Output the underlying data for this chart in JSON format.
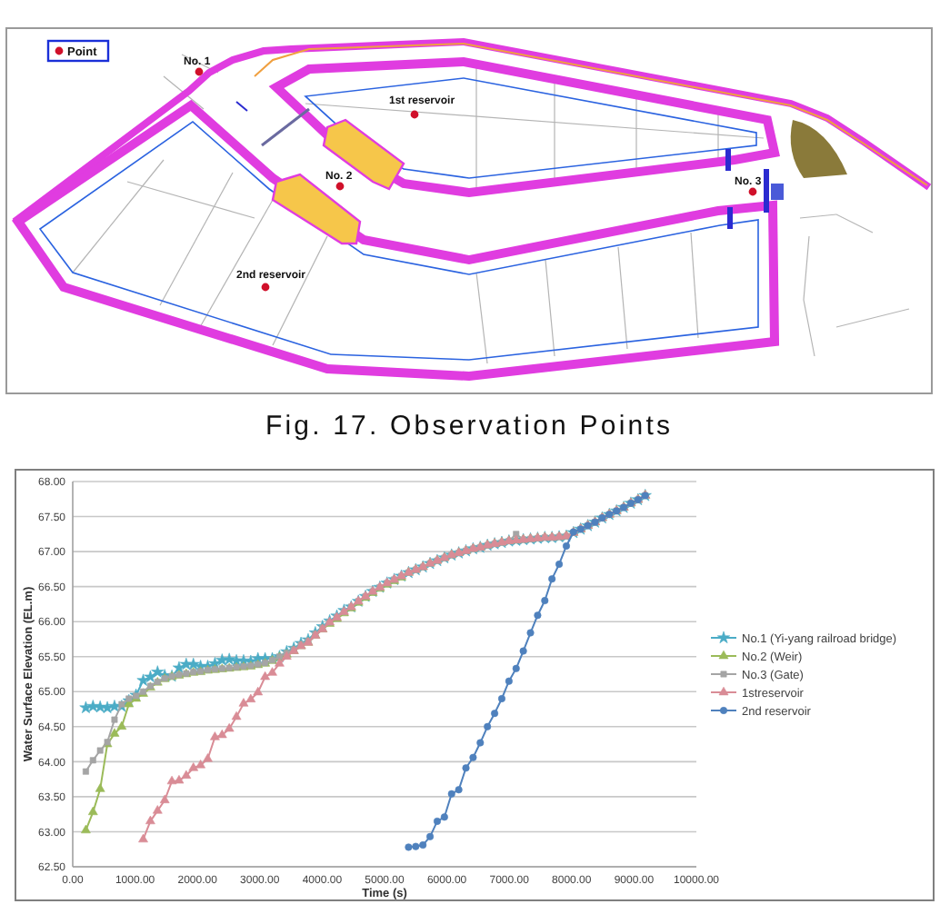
{
  "chart_data": [
    {
      "type": "other",
      "annotations": [
        "Point",
        "No. 1",
        "1st reservoir",
        "No. 2",
        "No. 3",
        "2nd reservoir",
        "Fig. 17. Observation Points"
      ]
    },
    {
      "type": "line",
      "xlabel": "Time (s)",
      "ylabel": "Water Surface Elevation (EL.m)",
      "xlim": [
        0,
        10000
      ],
      "xticks": [
        {
          "value": 0,
          "label": "0.00"
        },
        {
          "value": 1000,
          "label": "1000.00"
        },
        {
          "value": 2000,
          "label": "2000.00"
        },
        {
          "value": 3000,
          "label": "3000.00"
        },
        {
          "value": 4000,
          "label": "4000.00"
        },
        {
          "value": 5000,
          "label": "5000.00"
        },
        {
          "value": 6000,
          "label": "6000.00"
        },
        {
          "value": 7000,
          "label": "7000.00"
        },
        {
          "value": 8000,
          "label": "8000.00"
        },
        {
          "value": 9000,
          "label": "9000.00"
        },
        {
          "value": 10000,
          "label": "10000.00"
        }
      ],
      "ylim": [
        62.5,
        68
      ],
      "yticks": [
        {
          "value": 62.5,
          "label": "62.50"
        },
        {
          "value": 63,
          "label": "63.00"
        },
        {
          "value": 63.5,
          "label": "63.50"
        },
        {
          "value": 64,
          "label": "64.00"
        },
        {
          "value": 64.5,
          "label": "64.50"
        },
        {
          "value": 65,
          "label": "65.00"
        },
        {
          "value": 65.5,
          "label": "65.50"
        },
        {
          "value": 66,
          "label": "66.00"
        },
        {
          "value": 66.5,
          "label": "66.50"
        },
        {
          "value": 67,
          "label": "67.00"
        },
        {
          "value": 67.5,
          "label": "67.50"
        },
        {
          "value": 68,
          "label": "68.00"
        }
      ],
      "grid": "y",
      "legend": "right",
      "x": [
        210,
        325,
        440,
        555,
        670,
        785,
        900,
        1015,
        1130,
        1245,
        1360,
        1475,
        1590,
        1705,
        1820,
        1935,
        2050,
        2165,
        2280,
        2395,
        2510,
        2625,
        2740,
        2855,
        2970,
        3085,
        3200,
        3315,
        3430,
        3545,
        3660,
        3775,
        3890,
        4005,
        4120,
        4235,
        4350,
        4465,
        4580,
        4695,
        4810,
        4925,
        5040,
        5155,
        5270,
        5385,
        5500,
        5615,
        5730,
        5845,
        5960,
        6075,
        6190,
        6305,
        6420,
        6535,
        6650,
        6765,
        6880,
        6995,
        7110,
        7225,
        7340,
        7455,
        7570,
        7685,
        7800,
        7915,
        8030,
        8145,
        8260,
        8375,
        8490,
        8605,
        8720,
        8835,
        8950,
        9065,
        9180
      ],
      "series": [
        {
          "name": "No.1 (Yi-yang railroad bridge)",
          "color": "#4bacc6",
          "marker": "star",
          "values": [
            64.77,
            64.79,
            64.78,
            64.77,
            64.79,
            64.79,
            64.87,
            64.95,
            65.16,
            65.21,
            65.28,
            65.23,
            65.22,
            65.34,
            65.39,
            65.39,
            65.36,
            65.36,
            65.4,
            65.45,
            65.46,
            65.44,
            65.44,
            65.43,
            65.47,
            65.47,
            65.47,
            65.5,
            65.57,
            65.62,
            65.69,
            65.74,
            65.84,
            65.93,
            66.01,
            66.08,
            66.16,
            66.21,
            66.29,
            66.36,
            66.43,
            66.49,
            66.55,
            66.6,
            66.65,
            66.7,
            66.74,
            66.78,
            66.83,
            66.87,
            66.91,
            66.95,
            66.98,
            67.01,
            67.04,
            67.06,
            67.09,
            67.11,
            67.13,
            67.15,
            67.16,
            67.17,
            67.18,
            67.19,
            67.2,
            67.2,
            67.21,
            67.22,
            67.27,
            67.32,
            67.37,
            67.42,
            67.48,
            67.53,
            67.58,
            67.63,
            67.69,
            67.74,
            67.8
          ]
        },
        {
          "name": "No.2 (Weir)",
          "color": "#9bbb59",
          "marker": "triangle",
          "values": [
            63.02,
            63.28,
            63.61,
            64.25,
            64.4,
            64.5,
            64.82,
            64.9,
            64.97,
            65.06,
            65.13,
            65.18,
            65.21,
            65.23,
            65.25,
            65.27,
            65.28,
            65.3,
            65.31,
            65.32,
            65.33,
            65.34,
            65.35,
            65.36,
            65.38,
            65.4,
            65.44,
            65.49,
            65.53,
            65.58,
            65.65,
            65.7,
            65.8,
            65.89,
            65.97,
            66.04,
            66.12,
            66.19,
            66.27,
            66.34,
            66.41,
            66.47,
            66.53,
            66.58,
            66.63,
            66.7,
            66.74,
            66.78,
            66.83,
            66.87,
            66.91,
            66.95,
            66.98,
            67.01,
            67.04,
            67.06,
            67.09,
            67.11,
            67.13,
            67.15,
            67.16,
            67.17,
            67.18,
            67.19,
            67.2,
            67.2,
            67.21,
            67.22,
            67.27,
            67.32,
            67.37,
            67.42,
            67.48,
            67.53,
            67.58,
            67.63,
            67.69,
            67.74,
            67.8
          ]
        },
        {
          "name": "No.3 (Gate)",
          "color": "#a5a5a5",
          "marker": "square",
          "values": [
            63.86,
            64.02,
            64.16,
            64.28,
            64.6,
            64.82,
            64.9,
            64.94,
            65.0,
            65.08,
            65.14,
            65.19,
            65.22,
            65.24,
            65.26,
            65.28,
            65.29,
            65.31,
            65.32,
            65.33,
            65.34,
            65.35,
            65.36,
            65.37,
            65.39,
            65.41,
            65.45,
            65.5,
            65.55,
            65.6,
            65.67,
            65.72,
            65.82,
            65.91,
            65.99,
            66.06,
            66.14,
            66.21,
            66.29,
            66.36,
            66.43,
            66.49,
            66.55,
            66.6,
            66.65,
            66.7,
            66.74,
            66.78,
            66.83,
            66.87,
            66.91,
            66.95,
            66.98,
            67.01,
            67.04,
            67.06,
            67.09,
            67.11,
            67.13,
            67.15,
            67.25,
            67.17,
            67.18,
            67.19,
            67.2,
            67.2,
            67.21,
            67.22,
            67.27,
            67.32,
            67.37,
            67.42,
            67.48,
            67.53,
            67.58,
            67.63,
            67.69,
            67.74,
            67.8
          ]
        },
        {
          "name": "1streservoir",
          "color": "#d98c96",
          "marker": "triangle",
          "x": [
            1130,
            1245,
            1360,
            1475,
            1590,
            1705,
            1820,
            1935,
            2050,
            2165,
            2280,
            2395,
            2510,
            2625,
            2740,
            2855,
            2970,
            3085,
            3200,
            3315,
            3430,
            3545,
            3660,
            3775,
            3890,
            4005,
            4120,
            4235,
            4350,
            4465,
            4580,
            4695,
            4810,
            4925,
            5040,
            5155,
            5270,
            5385,
            5500,
            5615,
            5730,
            5845,
            5960,
            6075,
            6190,
            6305,
            6420,
            6535,
            6650,
            6765,
            6880,
            6995,
            7110,
            7225,
            7340,
            7455,
            7570,
            7685,
            7800,
            7915,
            8030,
            8145,
            8260,
            8375,
            8490,
            8605,
            8720,
            8835,
            8950,
            9065,
            9180
          ],
          "values": [
            62.89,
            63.15,
            63.3,
            63.45,
            63.72,
            63.73,
            63.8,
            63.91,
            63.95,
            64.04,
            64.35,
            64.38,
            64.47,
            64.64,
            64.83,
            64.89,
            64.99,
            65.21,
            65.27,
            65.4,
            65.5,
            65.58,
            65.65,
            65.7,
            65.8,
            65.89,
            65.99,
            66.06,
            66.14,
            66.21,
            66.29,
            66.36,
            66.43,
            66.49,
            66.55,
            66.6,
            66.65,
            66.7,
            66.74,
            66.78,
            66.83,
            66.87,
            66.91,
            66.95,
            66.98,
            67.01,
            67.04,
            67.06,
            67.09,
            67.11,
            67.13,
            67.15,
            67.16,
            67.17,
            67.18,
            67.19,
            67.2,
            67.2,
            67.21,
            67.22,
            67.27,
            67.32,
            67.37,
            67.42,
            67.48,
            67.53,
            67.58,
            67.63,
            67.69,
            67.74,
            67.8
          ]
        },
        {
          "name": "2nd reservoir",
          "color": "#4f81bd",
          "marker": "circle",
          "x": [
            5385,
            5500,
            5615,
            5730,
            5845,
            5960,
            6075,
            6190,
            6305,
            6420,
            6535,
            6650,
            6765,
            6880,
            6995,
            7110,
            7225,
            7340,
            7455,
            7570,
            7685,
            7800,
            7915,
            8030,
            8145,
            8260,
            8375,
            8490,
            8605,
            8720,
            8835,
            8950,
            9065,
            9180
          ],
          "values": [
            62.78,
            62.79,
            62.81,
            62.93,
            63.15,
            63.21,
            63.54,
            63.6,
            63.91,
            64.06,
            64.27,
            64.5,
            64.69,
            64.9,
            65.15,
            65.33,
            65.58,
            65.84,
            66.09,
            66.3,
            66.61,
            66.82,
            67.08,
            67.28,
            67.32,
            67.37,
            67.42,
            67.48,
            67.53,
            67.58,
            67.63,
            67.69,
            67.74,
            67.8
          ]
        }
      ]
    }
  ]
}
